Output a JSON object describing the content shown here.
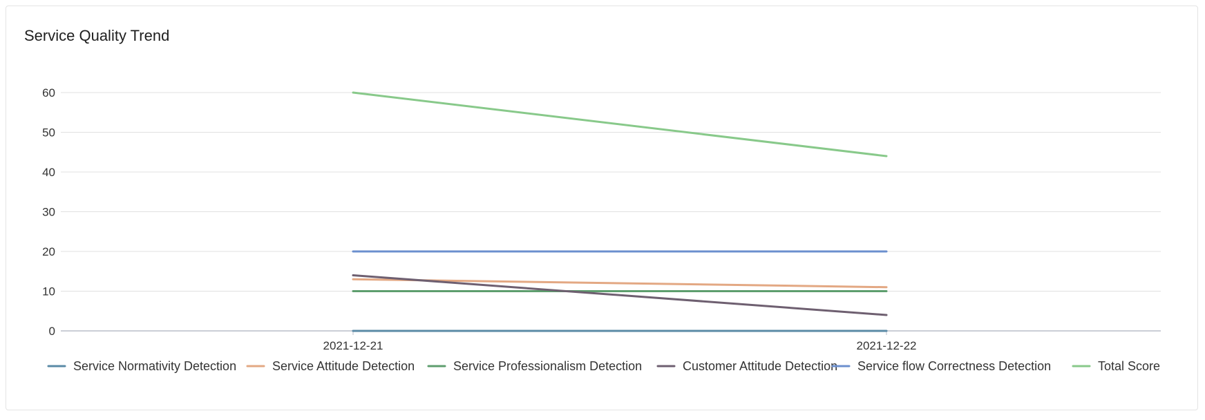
{
  "title": "Service Quality Trend",
  "chart_data": {
    "type": "line",
    "title": "Service Quality Trend",
    "xlabel": "",
    "ylabel": "",
    "categories": [
      "2021-12-21",
      "2021-12-22"
    ],
    "ylim": [
      0,
      60
    ],
    "yticks": [
      0,
      10,
      20,
      30,
      40,
      50,
      60
    ],
    "grid": true,
    "legend_position": "bottom",
    "series": [
      {
        "name": "Service Normativity Detection",
        "color": "#5a8aa6",
        "values": [
          0,
          0
        ]
      },
      {
        "name": "Service Attitude Detection",
        "color": "#e3a883",
        "values": [
          13,
          11
        ]
      },
      {
        "name": "Service Professionalism Detection",
        "color": "#5e9e6e",
        "values": [
          10,
          10
        ]
      },
      {
        "name": "Customer Attitude Detection",
        "color": "#6e5f70",
        "values": [
          14,
          4
        ]
      },
      {
        "name": "Service flow Correctness Detection",
        "color": "#6b8fce",
        "values": [
          20,
          20
        ]
      },
      {
        "name": "Total Score",
        "color": "#88c98a",
        "values": [
          60,
          44
        ]
      }
    ]
  }
}
